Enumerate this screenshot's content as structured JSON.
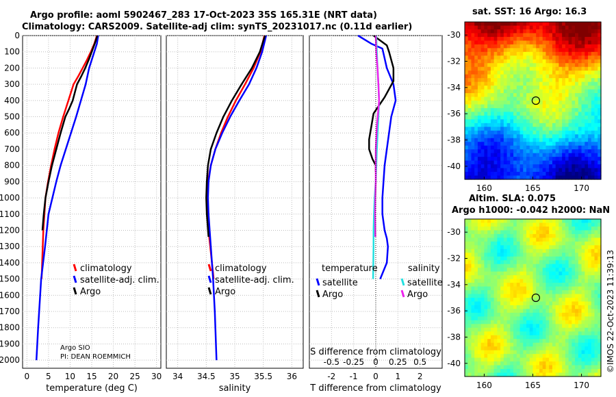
{
  "titles": {
    "line1": "Argo profile: aoml 5902467_283 17-Oct-2023 35S 165.31E (NRT data)",
    "line2": "Climatology: CARS2009. Satellite-adj clim: synTS_20231017.nc (0.11d earlier)",
    "sst": "sat. SST: 16 Argo: 16.3",
    "sla1": "Altim. SLA: 0.075",
    "sla2": "Argo h1000: -0.042 h2000: NaN"
  },
  "credit": {
    "line1": "Argo SIO",
    "line2": "PI: DEAN ROEMMICH"
  },
  "watermark": "©IMOS 22-Oct-2023 11:39:13",
  "colors": {
    "climatology": "#ff0000",
    "satellite": "#0000ff",
    "argo": "#000000",
    "satellite_s": "#22e0e0",
    "argo_s": "#ee22ee"
  },
  "chart_data": [
    {
      "id": "temperature",
      "type": "line",
      "xlabel": "temperature (deg C)",
      "ylabel": "",
      "xlim": [
        -1,
        31
      ],
      "ylim": [
        0,
        2050
      ],
      "xticks": [
        0,
        5,
        10,
        15,
        20,
        25,
        30
      ],
      "yticks": [
        0,
        100,
        200,
        300,
        400,
        500,
        600,
        700,
        800,
        900,
        1000,
        1100,
        1200,
        1300,
        1400,
        1500,
        1600,
        1700,
        1800,
        1900,
        2000
      ],
      "legend": [
        "climatology",
        "satellite-adj. clim.",
        "Argo"
      ],
      "series": [
        {
          "name": "climatology",
          "color": "#ff0000",
          "x": [
            16.2,
            15.6,
            14.8,
            13.9,
            12.9,
            11.9,
            10.8,
            9.6,
            8.4,
            7.3,
            6.4,
            5.6,
            4.9,
            4.3,
            3.8,
            3.4
          ],
          "y": [
            0,
            50,
            100,
            150,
            200,
            250,
            300,
            400,
            500,
            600,
            700,
            800,
            900,
            1000,
            1200,
            1500
          ]
        },
        {
          "name": "satellite-adj. clim.",
          "color": "#0000ff",
          "x": [
            16.5,
            16.2,
            15.6,
            15.0,
            14.4,
            13.6,
            12.5,
            11.4,
            10.2,
            9.0,
            7.8,
            6.8,
            5.9,
            5.0,
            4.2,
            3.3,
            2.6,
            2.2
          ],
          "y": [
            0,
            50,
            100,
            150,
            200,
            300,
            400,
            500,
            600,
            700,
            800,
            900,
            1000,
            1100,
            1300,
            1500,
            1800,
            2000
          ]
        },
        {
          "name": "Argo",
          "color": "#000000",
          "x": [
            16.3,
            15.7,
            15.0,
            14.3,
            13.5,
            12.6,
            11.6,
            10.6,
            9.8,
            8.9,
            7.8,
            6.8,
            5.8,
            5.0,
            4.3,
            3.9,
            3.6
          ],
          "y": [
            0,
            50,
            100,
            150,
            200,
            250,
            300,
            400,
            450,
            500,
            600,
            700,
            800,
            900,
            1000,
            1100,
            1200
          ]
        }
      ]
    },
    {
      "id": "salinity",
      "type": "line",
      "xlabel": "salinity",
      "xlim": [
        33.8,
        36.2
      ],
      "ylim": [
        0,
        2050
      ],
      "xticks": [
        34,
        34.5,
        35,
        35.5,
        36
      ],
      "legend": [
        "climatology",
        "satellite-adj. clim.",
        "Argo"
      ],
      "series": [
        {
          "name": "climatology",
          "color": "#ff0000",
          "x": [
            35.52,
            35.45,
            35.33,
            35.18,
            35.02,
            34.88,
            34.76,
            34.66,
            34.58,
            34.53,
            34.51,
            34.52,
            34.54,
            34.57,
            34.6,
            34.63
          ],
          "y": [
            0,
            100,
            200,
            300,
            400,
            500,
            600,
            700,
            800,
            900,
            1000,
            1100,
            1200,
            1300,
            1400,
            1500
          ]
        },
        {
          "name": "satellite-adj. clim.",
          "color": "#0000ff",
          "x": [
            35.55,
            35.48,
            35.38,
            35.25,
            35.08,
            34.92,
            34.78,
            34.66,
            34.58,
            34.54,
            34.53,
            34.54,
            34.56,
            34.58,
            34.6,
            34.62,
            34.65,
            34.67,
            34.68
          ],
          "y": [
            0,
            100,
            200,
            300,
            400,
            500,
            600,
            700,
            800,
            900,
            1000,
            1100,
            1200,
            1300,
            1400,
            1500,
            1700,
            1900,
            2000
          ]
        },
        {
          "name": "Argo",
          "color": "#000000",
          "x": [
            35.53,
            35.44,
            35.3,
            35.12,
            34.95,
            34.8,
            34.68,
            34.58,
            34.53,
            34.51,
            34.5,
            34.51,
            34.54
          ],
          "y": [
            0,
            100,
            200,
            300,
            400,
            500,
            600,
            700,
            800,
            900,
            1000,
            1100,
            1240
          ]
        }
      ]
    },
    {
      "id": "difference",
      "type": "line",
      "xlabel": "T difference from climatology",
      "top_label": "S difference from climatology",
      "xlim": [
        -3,
        3
      ],
      "ylim": [
        0,
        2050
      ],
      "xticks_T": [
        -2,
        -1,
        0,
        1,
        2
      ],
      "xticks_S": [
        -0.5,
        -0.25,
        0,
        0.25,
        0.5
      ],
      "legend_T": [
        "temperature",
        "satellite",
        "Argo"
      ],
      "legend_S": [
        "salinity",
        "satellite",
        "Argo"
      ],
      "series": [
        {
          "name": "temperature satellite",
          "color": "#0000ff",
          "x": [
            -0.8,
            -0.2,
            0.3,
            0.5,
            0.8,
            0.9,
            0.7,
            0.6,
            0.5,
            0.4,
            0.35,
            0.3,
            0.3,
            0.4,
            0.5,
            0.55,
            0.5,
            0.35,
            0.2
          ],
          "y": [
            0,
            50,
            80,
            200,
            300,
            400,
            500,
            600,
            700,
            800,
            900,
            1000,
            1100,
            1200,
            1250,
            1300,
            1400,
            1450,
            1500
          ]
        },
        {
          "name": "temperature Argo",
          "color": "#000000",
          "x": [
            -0.1,
            0.1,
            0.3,
            0.5,
            0.6,
            0.7,
            0.8,
            0.8,
            0.4,
            -0.1,
            -0.2,
            -0.3,
            -0.3,
            -0.15,
            0.0,
            0.0
          ],
          "y": [
            0,
            20,
            40,
            60,
            100,
            150,
            200,
            280,
            380,
            480,
            560,
            640,
            700,
            760,
            800,
            840
          ]
        },
        {
          "name": "salinity satellite",
          "color": "#22e0e0",
          "x": [
            0.02,
            0.05,
            0.08,
            0.12,
            0.15,
            0.12,
            0.05,
            0.0,
            -0.05,
            -0.08,
            -0.1,
            -0.1,
            -0.11,
            -0.12
          ],
          "y": [
            0,
            100,
            200,
            300,
            400,
            500,
            700,
            900,
            1000,
            1100,
            1200,
            1300,
            1400,
            1500
          ]
        },
        {
          "name": "salinity Argo",
          "color": "#ee22ee",
          "x": [
            0.0,
            0.02,
            0.08,
            0.12,
            0.15,
            0.1,
            0.05,
            0.0,
            0.0,
            -0.02,
            -0.03,
            -0.02
          ],
          "y": [
            0,
            100,
            200,
            300,
            400,
            480,
            560,
            700,
            900,
            1000,
            1100,
            1240
          ]
        }
      ]
    }
  ],
  "maps": {
    "sst": {
      "xticks": [
        160,
        165,
        170
      ],
      "yticks": [
        -30,
        -32,
        -34,
        -36,
        -38,
        -40
      ],
      "marker": {
        "lon": 165.31,
        "lat": -35
      },
      "xlim": [
        158,
        172
      ],
      "ylim": [
        -41,
        -29
      ]
    },
    "sla": {
      "xticks": [
        160,
        165,
        170
      ],
      "yticks": [
        -30,
        -32,
        -34,
        -36,
        -38,
        -40
      ],
      "marker": {
        "lon": 165.31,
        "lat": -35
      },
      "xlim": [
        158,
        172
      ],
      "ylim": [
        -41,
        -29
      ]
    }
  }
}
